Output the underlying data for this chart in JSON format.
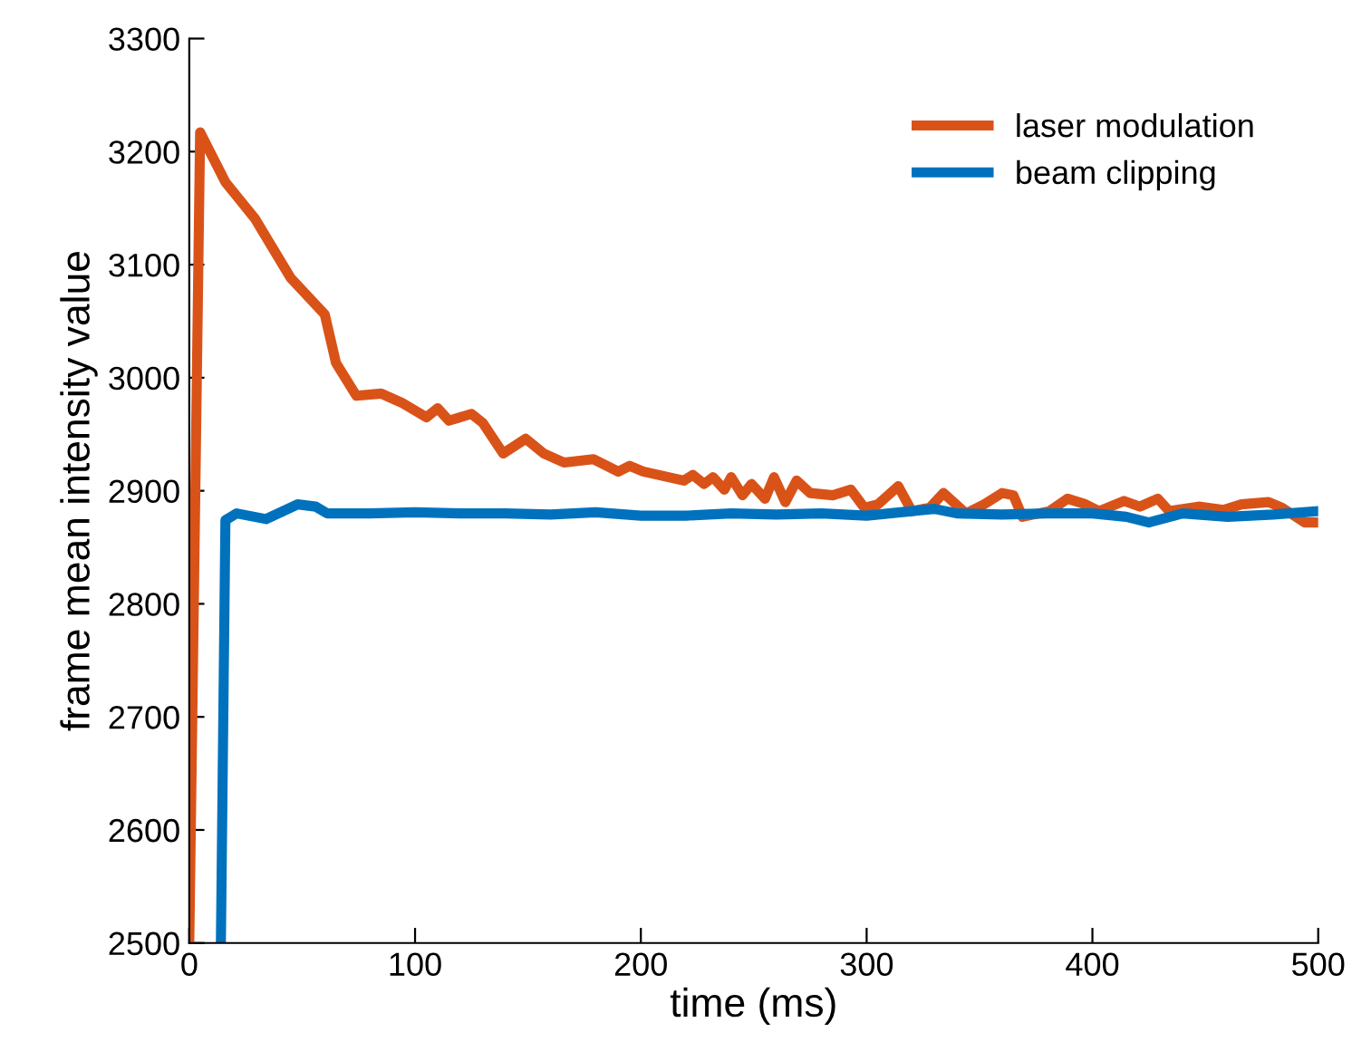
{
  "chart_data": {
    "type": "line",
    "xlabel": "time (ms)",
    "ylabel": "frame mean intensity value",
    "xlim": [
      0,
      500
    ],
    "ylim": [
      2500,
      3300
    ],
    "xticks": [
      0,
      100,
      200,
      300,
      400,
      500
    ],
    "yticks": [
      2500,
      2600,
      2700,
      2800,
      2900,
      3000,
      3100,
      3200,
      3300
    ],
    "grid": false,
    "legend": "top right",
    "line_style": "solid",
    "marker": "none",
    "series": [
      {
        "name": "laser modulation",
        "color": "#d95319",
        "x": [
          0,
          4.8,
          16,
          29,
          45,
          60,
          65,
          74,
          85,
          94,
          105,
          110,
          115,
          125,
          130,
          139,
          149,
          157,
          166,
          179,
          190,
          195,
          201,
          219,
          223,
          228,
          232,
          237,
          240,
          245,
          249,
          255,
          259,
          264,
          269,
          275,
          285,
          293,
          299,
          305,
          314,
          320,
          328,
          334,
          344,
          352,
          360,
          365,
          369,
          381,
          389,
          397,
          403,
          414,
          421,
          429,
          434,
          447,
          458,
          466,
          478,
          484,
          494,
          498
        ],
        "values": [
          2500,
          3217,
          3173,
          3141,
          3088,
          3056,
          3013,
          2984,
          2986,
          2978,
          2965,
          2973,
          2962,
          2968,
          2960,
          2933,
          2946,
          2933,
          2925,
          2928,
          2917,
          2922,
          2917,
          2909,
          2914,
          2906,
          2912,
          2901,
          2912,
          2896,
          2906,
          2893,
          2912,
          2890,
          2909,
          2898,
          2896,
          2901,
          2885,
          2888,
          2904,
          2882,
          2885,
          2898,
          2880,
          2888,
          2898,
          2896,
          2877,
          2882,
          2893,
          2888,
          2882,
          2891,
          2886,
          2893,
          2882,
          2886,
          2883,
          2888,
          2890,
          2885,
          2872,
          2872
        ]
      },
      {
        "name": "beam clipping",
        "color": "#0072bd",
        "x": [
          14,
          16,
          21,
          34,
          48,
          56,
          61,
          80,
          100,
          120,
          140,
          160,
          180,
          200,
          220,
          240,
          260,
          280,
          300,
          320,
          330,
          340,
          360,
          380,
          400,
          415,
          425,
          440,
          460,
          480,
          500
        ],
        "values": [
          2500,
          2874,
          2880,
          2875,
          2888,
          2886,
          2880,
          2880,
          2881,
          2880,
          2880,
          2879,
          2881,
          2878,
          2878,
          2880,
          2879,
          2880,
          2878,
          2882,
          2884,
          2880,
          2879,
          2880,
          2880,
          2877,
          2872,
          2880,
          2877,
          2879,
          2882
        ]
      }
    ]
  }
}
